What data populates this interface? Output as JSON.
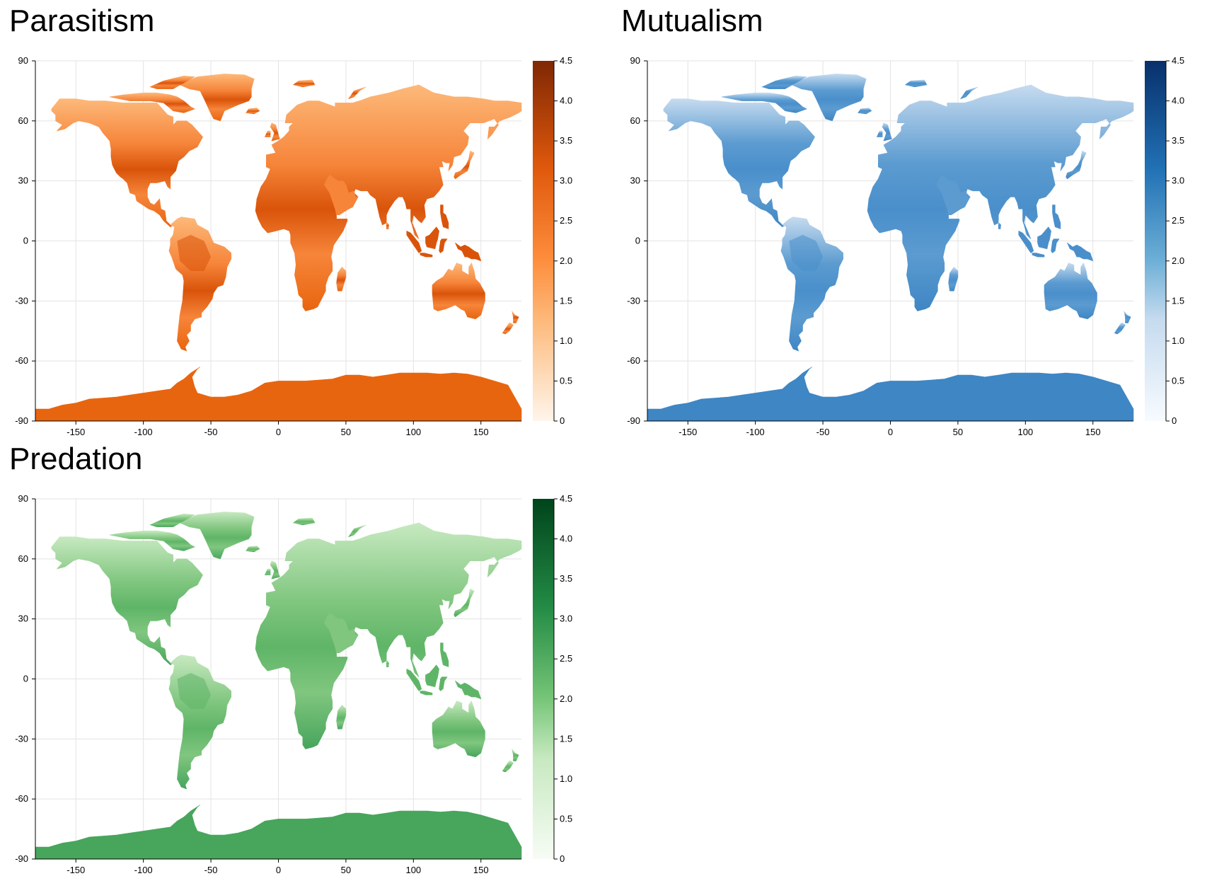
{
  "panels": [
    {
      "id": "parasitism",
      "title": "Parasitism",
      "colormap": "oranges",
      "colors": {
        "low": "#fff5eb",
        "mid1": "#fdb97a",
        "mid2": "#fd8d3c",
        "high1": "#e0590c",
        "high2": "#7f2704",
        "land_base": "#f6853a",
        "antarctica": "#e8650f",
        "tropics": "#d9540a"
      }
    },
    {
      "id": "mutualism",
      "title": "Mutualism",
      "colormap": "blues",
      "colors": {
        "low": "#f7fbff",
        "mid1": "#c6dbef",
        "mid2": "#6baed6",
        "high1": "#2171b5",
        "high2": "#08306b",
        "land_base": "#5b9bd0",
        "antarctica": "#3f86c4",
        "tropics": "#4a8fcb"
      }
    },
    {
      "id": "predation",
      "title": "Predation",
      "colormap": "greens",
      "colors": {
        "low": "#f7fcf5",
        "mid1": "#c7e9c0",
        "mid2": "#74c476",
        "high1": "#238b45",
        "high2": "#00441b",
        "land_base": "#80c67f",
        "antarctica": "#48a55c",
        "tropics": "#5fb567"
      }
    }
  ],
  "axes": {
    "x_ticks": [
      "-150",
      "-100",
      "-50",
      "0",
      "50",
      "100",
      "150"
    ],
    "x_values": [
      -150,
      -100,
      -50,
      0,
      50,
      100,
      150
    ],
    "y_ticks": [
      "90",
      "60",
      "30",
      "0",
      "-30",
      "-60",
      "-90"
    ],
    "y_values": [
      90,
      60,
      30,
      0,
      -30,
      -60,
      -90
    ],
    "xlim": [
      -180,
      180
    ],
    "ylim": [
      -90,
      90
    ],
    "grid": true
  },
  "colorbar": {
    "ticks": [
      "4.5",
      "4.0",
      "3.5",
      "3.0",
      "2.5",
      "2.0",
      "1.5",
      "1.0",
      "0.5",
      "0"
    ],
    "values": [
      4.5,
      4.0,
      3.5,
      3.0,
      2.5,
      2.0,
      1.5,
      1.0,
      0.5,
      0
    ],
    "range": [
      0,
      4.5
    ]
  }
}
